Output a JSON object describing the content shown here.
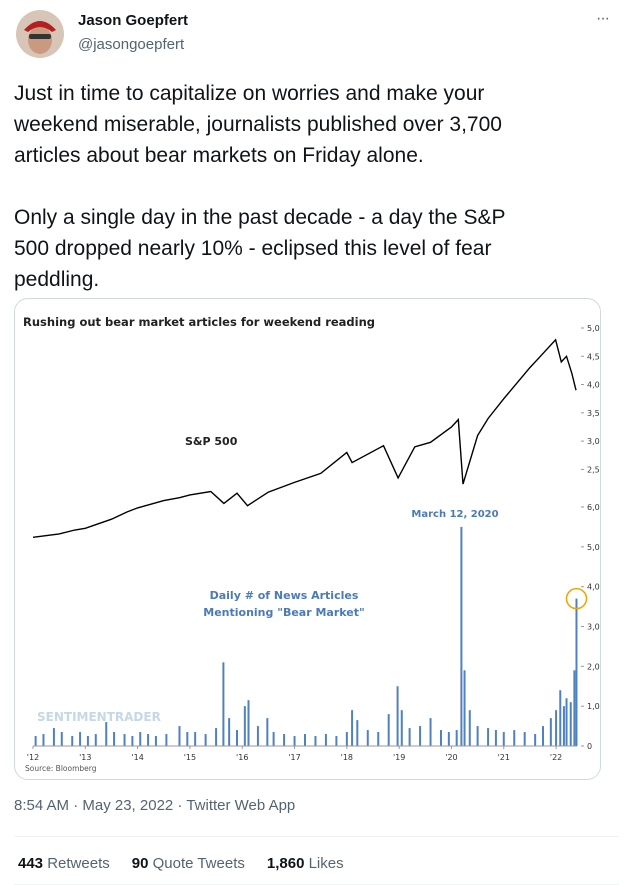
{
  "header": {
    "name": "Jason Goepfert",
    "handle": "@jasongoepfert",
    "menu": "···"
  },
  "text": [
    [
      "Just in time to capitalize on worries and make your",
      "weekend miserable, journalists published over 3,700",
      "articles about bear markets on Friday alone."
    ],
    [
      "Only a single day in the past decade - a day the S&P",
      "500 dropped nearly 10% - eclipsed this level of fear",
      "peddling."
    ]
  ],
  "chart_data": [
    {
      "type": "line",
      "title": "Rushing out bear market articles for weekend reading",
      "annotation": "S&P 500",
      "color": "#000000",
      "x": [
        2012.0,
        2012.5,
        2012.8,
        2013.0,
        2013.5,
        2013.8,
        2014.0,
        2014.5,
        2014.8,
        2015.0,
        2015.4,
        2015.65,
        2015.9,
        2016.1,
        2016.5,
        2017.0,
        2017.5,
        2018.0,
        2018.1,
        2018.7,
        2018.98,
        2019.3,
        2019.6,
        2020.0,
        2020.13,
        2020.22,
        2020.5,
        2020.7,
        2021.0,
        2021.5,
        2021.7,
        2021.99,
        2022.1,
        2022.2,
        2022.3,
        2022.38
      ],
      "values": [
        1300,
        1360,
        1430,
        1460,
        1620,
        1750,
        1820,
        1950,
        2000,
        2050,
        2110,
        1900,
        2080,
        1860,
        2100,
        2270,
        2430,
        2800,
        2620,
        2920,
        2350,
        2900,
        2980,
        3250,
        3380,
        2240,
        3100,
        3400,
        3750,
        4300,
        4500,
        4790,
        4400,
        4500,
        4200,
        3900
      ],
      "xlim": [
        2012,
        2022.4
      ],
      "ylim": [
        1200,
        5100
      ],
      "yticks": [
        {
          "value": 2500,
          "label": "2,500"
        },
        {
          "value": 3000,
          "label": "3,000"
        },
        {
          "value": 3500,
          "label": "3,500"
        },
        {
          "value": 4000,
          "label": "4,000"
        },
        {
          "value": 4500,
          "label": "4,500"
        },
        {
          "value": 5000,
          "label": "5,000"
        }
      ]
    },
    {
      "type": "bar",
      "annotations": [
        "March 12, 2020",
        "Daily # of News Articles",
        "Mentioning \"Bear Market\""
      ],
      "watermark": "SENTIMENTRADER",
      "source": "Source: Bloomberg",
      "color": "#4f81bd",
      "x": [
        2012.05,
        2012.2,
        2012.4,
        2012.55,
        2012.75,
        2012.9,
        2013.05,
        2013.2,
        2013.4,
        2013.55,
        2013.75,
        2013.9,
        2014.05,
        2014.2,
        2014.35,
        2014.55,
        2014.8,
        2014.95,
        2015.1,
        2015.3,
        2015.5,
        2015.64,
        2015.75,
        2015.9,
        2016.05,
        2016.12,
        2016.3,
        2016.48,
        2016.6,
        2016.8,
        2017.0,
        2017.2,
        2017.4,
        2017.6,
        2017.8,
        2018.0,
        2018.1,
        2018.2,
        2018.4,
        2018.6,
        2018.8,
        2018.97,
        2019.05,
        2019.2,
        2019.4,
        2019.6,
        2019.8,
        2019.95,
        2020.1,
        2020.19,
        2020.25,
        2020.35,
        2020.5,
        2020.7,
        2020.85,
        2021.0,
        2021.2,
        2021.4,
        2021.6,
        2021.75,
        2021.9,
        2022.0,
        2022.08,
        2022.15,
        2022.2,
        2022.28,
        2022.35,
        2022.39
      ],
      "values": [
        250,
        300,
        450,
        350,
        250,
        350,
        250,
        300,
        600,
        350,
        300,
        250,
        350,
        300,
        250,
        300,
        500,
        350,
        350,
        300,
        450,
        2100,
        700,
        400,
        1000,
        1150,
        500,
        700,
        350,
        300,
        250,
        300,
        250,
        300,
        250,
        350,
        900,
        650,
        400,
        350,
        800,
        1500,
        900,
        450,
        500,
        700,
        400,
        350,
        400,
        5500,
        1900,
        900,
        500,
        450,
        400,
        350,
        400,
        350,
        300,
        500,
        700,
        900,
        1400,
        1000,
        1200,
        1100,
        1900,
        3700
      ],
      "xlim": [
        2012,
        2022.4
      ],
      "ylim": [
        0,
        6000
      ],
      "yticks": [
        0,
        {
          "value": 1000,
          "label": "1,000"
        },
        {
          "value": 2000,
          "label": "2,000"
        },
        {
          "value": 3000,
          "label": "3,000"
        },
        {
          "value": 4000,
          "label": "4,000"
        },
        {
          "value": 5000,
          "label": "5,000"
        },
        {
          "value": 6000,
          "label": "6,000"
        }
      ],
      "xticks": [
        {
          "value": 2012,
          "label": "'12"
        },
        {
          "value": 2013,
          "label": "'13"
        },
        {
          "value": 2014,
          "label": "'14"
        },
        {
          "value": 2015,
          "label": "'15"
        },
        {
          "value": 2016,
          "label": "'16"
        },
        {
          "value": 2017,
          "label": "'17"
        },
        {
          "value": 2018,
          "label": "'18"
        },
        {
          "value": 2019,
          "label": "'19"
        },
        {
          "value": 2020,
          "label": "'20"
        },
        {
          "value": 2021,
          "label": "'21"
        },
        {
          "value": 2022,
          "label": "'22"
        }
      ]
    }
  ],
  "footer": {
    "timestamp": "8:54 AM · May 23, 2022 · Twitter Web App",
    "stats": [
      {
        "count": "443",
        "label": "Retweets"
      },
      {
        "count": "90",
        "label": "Quote Tweets"
      },
      {
        "count": "1,860",
        "label": "Likes"
      }
    ]
  }
}
